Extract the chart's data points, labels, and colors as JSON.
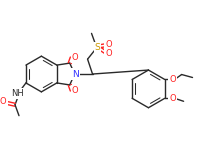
{
  "bg_color": "#ffffff",
  "bond_color": "#2a2a2a",
  "atom_colors": {
    "N": "#3333ff",
    "O": "#ff2222",
    "S": "#cc9900",
    "C": "#2a2a2a"
  },
  "figsize": [
    2.0,
    1.54
  ],
  "dpi": 100
}
